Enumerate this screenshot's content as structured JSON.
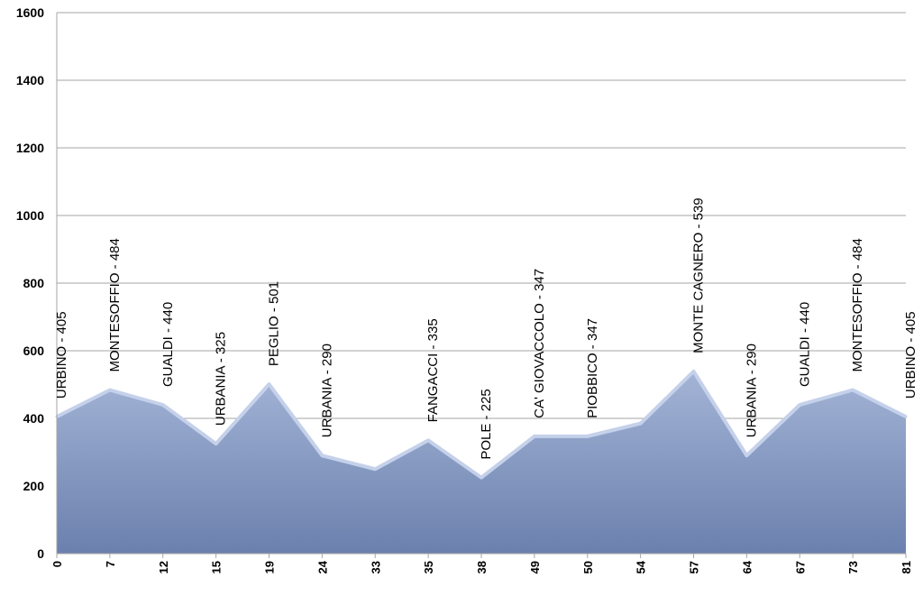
{
  "chart_data": {
    "type": "area",
    "title": "",
    "xlabel": "",
    "ylabel": "",
    "ylim": [
      0,
      1600
    ],
    "yticks": [
      0,
      200,
      400,
      600,
      800,
      1000,
      1200,
      1400,
      1600
    ],
    "grid": true,
    "legend": "none",
    "categories": [
      "0",
      "7",
      "12",
      "15",
      "19",
      "24",
      "33",
      "35",
      "38",
      "49",
      "50",
      "54",
      "57",
      "64",
      "67",
      "73",
      "81"
    ],
    "series": [
      {
        "values": [
          405,
          484,
          440,
          325,
          501,
          290,
          250,
          335,
          225,
          347,
          347,
          385,
          539,
          290,
          440,
          484,
          405
        ]
      }
    ],
    "annotations": [
      {
        "category": "0",
        "text": "URBINO - 405"
      },
      {
        "category": "7",
        "text": "MONTESOFFIO - 484"
      },
      {
        "category": "12",
        "text": "GUALDI - 440"
      },
      {
        "category": "15",
        "text": "URBANIA - 325"
      },
      {
        "category": "19",
        "text": "PEGLIO - 501"
      },
      {
        "category": "24",
        "text": "URBANIA - 290"
      },
      {
        "category": "35",
        "text": "FANGACCI - 335"
      },
      {
        "category": "38",
        "text": "POLE - 225"
      },
      {
        "category": "49",
        "text": "CA' GIOVACCOLO - 347"
      },
      {
        "category": "50",
        "text": "PIOBBICO - 347"
      },
      {
        "category": "57",
        "text": "MONTE CAGNERO - 539"
      },
      {
        "category": "64",
        "text": "URBANIA - 290"
      },
      {
        "category": "67",
        "text": "GUALDI - 440"
      },
      {
        "category": "73",
        "text": "MONTESOFFIO - 484"
      },
      {
        "category": "81",
        "text": "URBINO - 405"
      }
    ],
    "colors": {
      "fill_top": "#a3b4d6",
      "fill_bottom": "#6b80ad",
      "edge": "#c5d1ea",
      "grid": "#a6a6a6",
      "axis": "#a6a6a6"
    }
  }
}
